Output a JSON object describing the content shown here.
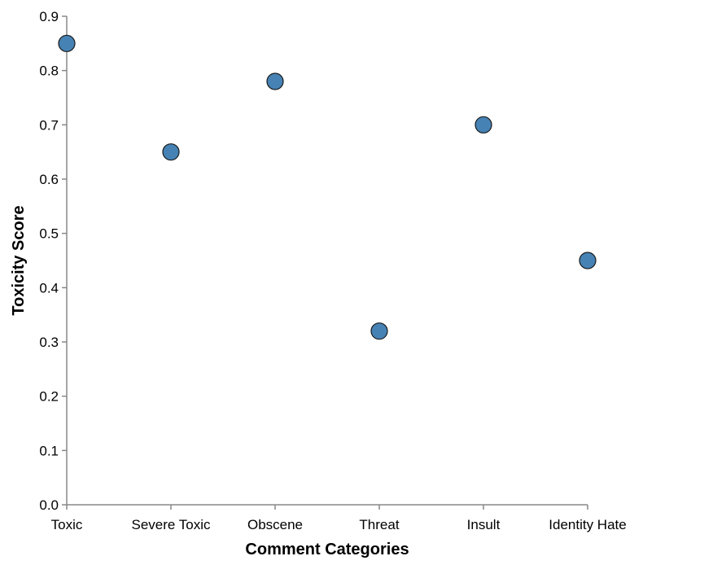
{
  "chart_data": {
    "type": "scatter",
    "title": "",
    "xlabel": "Comment Categories",
    "ylabel": "Toxicity Score",
    "categories": [
      "Toxic",
      "Severe Toxic",
      "Obscene",
      "Threat",
      "Insult",
      "Identity Hate"
    ],
    "values": [
      0.85,
      0.65,
      0.78,
      0.32,
      0.7,
      0.45
    ],
    "ylim": [
      0,
      0.9
    ],
    "yticks": [
      "0.0",
      "0.1",
      "0.2",
      "0.3",
      "0.4",
      "0.5",
      "0.6",
      "0.7",
      "0.8",
      "0.9"
    ],
    "grid": false,
    "legend": "none",
    "point_color": "#4682b4",
    "point_stroke": "#1a1a1a"
  }
}
